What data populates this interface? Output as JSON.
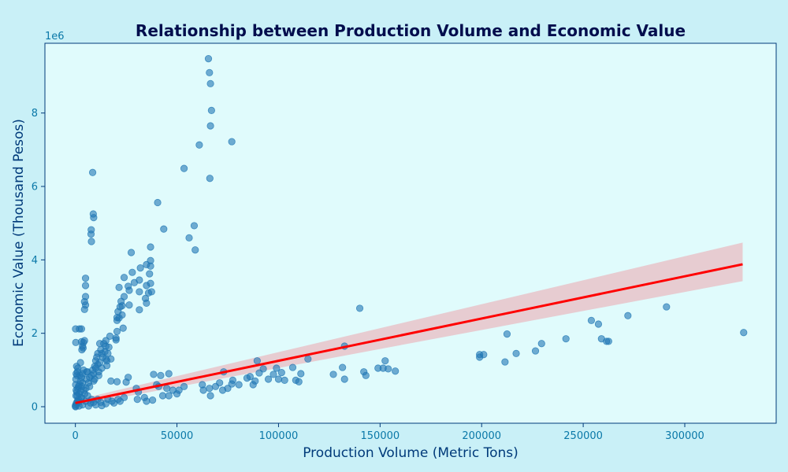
{
  "chart_data": {
    "type": "scatter",
    "title": "Relationship between Production Volume and Economic Value",
    "xlabel": "Production Volume (Metric Tons)",
    "ylabel": "Economic Value (Thousand Pesos)",
    "y_offset_text": "1e6",
    "xlim": [
      -15000,
      345000
    ],
    "ylim": [
      -0.45,
      9.9
    ],
    "x_ticks": [
      0,
      50000,
      100000,
      150000,
      200000,
      250000,
      300000
    ],
    "x_tick_labels": [
      "0",
      "50000",
      "100000",
      "150000",
      "200000",
      "250000",
      "300000"
    ],
    "y_ticks": [
      0,
      2,
      4,
      6,
      8
    ],
    "y_tick_labels": [
      "0",
      "2",
      "4",
      "6",
      "8"
    ],
    "grid": false,
    "regression": {
      "x": [
        0,
        328500
      ],
      "y": [
        0.1,
        3.88
      ],
      "ci_lower": [
        0.02,
        3.42
      ],
      "ci_upper": [
        0.18,
        4.47
      ],
      "color": "#ff0000",
      "ci_color": "#e8c7cc"
    },
    "colors": {
      "points": "#1f77b4",
      "background": "#c9f0f7",
      "plot_area": "#e0fbfc",
      "title": "#000d4d",
      "axis_label": "#003a7a",
      "ticks": "#0a78a8"
    },
    "points": [
      [
        65500,
        9.48
      ],
      [
        66000,
        9.1
      ],
      [
        66500,
        8.8
      ],
      [
        67000,
        8.07
      ],
      [
        66500,
        7.65
      ],
      [
        77000,
        7.22
      ],
      [
        61000,
        7.13
      ],
      [
        53500,
        6.49
      ],
      [
        66200,
        6.22
      ],
      [
        8500,
        6.38
      ],
      [
        40500,
        5.56
      ],
      [
        8800,
        5.25
      ],
      [
        9000,
        5.15
      ],
      [
        7800,
        4.82
      ],
      [
        7700,
        4.7
      ],
      [
        7900,
        4.5
      ],
      [
        58500,
        4.93
      ],
      [
        43500,
        4.84
      ],
      [
        56000,
        4.6
      ],
      [
        59000,
        4.27
      ],
      [
        37000,
        4.35
      ],
      [
        27500,
        4.2
      ],
      [
        37000,
        3.98
      ],
      [
        35000,
        3.87
      ],
      [
        37000,
        3.83
      ],
      [
        32000,
        3.78
      ],
      [
        28000,
        3.66
      ],
      [
        36500,
        3.62
      ],
      [
        24000,
        3.52
      ],
      [
        31500,
        3.45
      ],
      [
        29000,
        3.38
      ],
      [
        37000,
        3.36
      ],
      [
        35000,
        3.3
      ],
      [
        26000,
        3.28
      ],
      [
        21500,
        3.25
      ],
      [
        26500,
        3.17
      ],
      [
        37500,
        3.13
      ],
      [
        31500,
        3.13
      ],
      [
        36000,
        3.1
      ],
      [
        24000,
        3.0
      ],
      [
        34500,
        2.95
      ],
      [
        22500,
        2.87
      ],
      [
        35000,
        2.82
      ],
      [
        26500,
        2.77
      ],
      [
        23000,
        2.75
      ],
      [
        22000,
        2.72
      ],
      [
        31500,
        2.64
      ],
      [
        21000,
        2.59
      ],
      [
        23000,
        2.5
      ],
      [
        20500,
        2.43
      ],
      [
        21500,
        2.42
      ],
      [
        20500,
        2.35
      ],
      [
        23500,
        2.14
      ],
      [
        20500,
        2.05
      ],
      [
        20000,
        1.87
      ],
      [
        20000,
        1.82
      ],
      [
        5000,
        3.5
      ],
      [
        5000,
        3.3
      ],
      [
        5000,
        3.0
      ],
      [
        4500,
        2.86
      ],
      [
        5000,
        2.77
      ],
      [
        4500,
        2.65
      ],
      [
        2000,
        2.12
      ],
      [
        3000,
        2.12
      ],
      [
        100,
        2.12
      ],
      [
        3000,
        1.77
      ],
      [
        4000,
        1.75
      ],
      [
        3500,
        1.65
      ],
      [
        3800,
        1.6
      ],
      [
        3200,
        1.55
      ],
      [
        200,
        1.75
      ],
      [
        4500,
        1.8
      ],
      [
        15000,
        1.8
      ],
      [
        17000,
        1.92
      ],
      [
        15000,
        1.65
      ],
      [
        16500,
        1.62
      ],
      [
        12000,
        1.72
      ],
      [
        14500,
        1.5
      ],
      [
        13000,
        1.45
      ],
      [
        11000,
        1.45
      ],
      [
        13500,
        1.35
      ],
      [
        15000,
        1.3
      ],
      [
        17500,
        1.3
      ],
      [
        10000,
        1.25
      ],
      [
        12000,
        1.2
      ],
      [
        9500,
        1.1
      ],
      [
        15500,
        1.12
      ],
      [
        8500,
        1.0
      ],
      [
        6000,
        0.95
      ],
      [
        9000,
        0.9
      ],
      [
        11500,
        0.85
      ],
      [
        7000,
        0.8
      ],
      [
        5500,
        0.75
      ],
      [
        9000,
        0.7
      ],
      [
        3500,
        0.65
      ],
      [
        1500,
        0.55
      ],
      [
        2500,
        1.2
      ],
      [
        1200,
        1.05
      ],
      [
        800,
        0.85
      ],
      [
        400,
        0.45
      ],
      [
        1800,
        0.35
      ],
      [
        2800,
        0.25
      ],
      [
        5000,
        0.15
      ],
      [
        7500,
        0.1
      ],
      [
        10000,
        0.05
      ],
      [
        12500,
        0.12
      ],
      [
        15000,
        0.08
      ],
      [
        18000,
        0.15
      ],
      [
        21000,
        0.2
      ],
      [
        24000,
        0.25
      ],
      [
        26000,
        0.8
      ],
      [
        25000,
        0.67
      ],
      [
        17500,
        0.7
      ],
      [
        20500,
        0.68
      ],
      [
        30000,
        0.5
      ],
      [
        31000,
        0.4
      ],
      [
        30500,
        0.2
      ],
      [
        34000,
        0.25
      ],
      [
        35000,
        0.15
      ],
      [
        38000,
        0.18
      ],
      [
        38500,
        0.88
      ],
      [
        42000,
        0.85
      ],
      [
        46000,
        0.9
      ],
      [
        40000,
        0.6
      ],
      [
        41000,
        0.55
      ],
      [
        45000,
        0.5
      ],
      [
        48000,
        0.45
      ],
      [
        51000,
        0.45
      ],
      [
        50000,
        0.35
      ],
      [
        46000,
        0.3
      ],
      [
        53500,
        0.55
      ],
      [
        43000,
        0.3
      ],
      [
        62500,
        0.6
      ],
      [
        63000,
        0.45
      ],
      [
        66000,
        0.5
      ],
      [
        66500,
        0.3
      ],
      [
        69000,
        0.55
      ],
      [
        71000,
        0.65
      ],
      [
        73000,
        0.95
      ],
      [
        72500,
        0.45
      ],
      [
        75000,
        0.5
      ],
      [
        77000,
        0.62
      ],
      [
        77500,
        0.72
      ],
      [
        80500,
        0.6
      ],
      [
        84500,
        0.78
      ],
      [
        86000,
        0.82
      ],
      [
        87500,
        0.6
      ],
      [
        88500,
        0.7
      ],
      [
        90500,
        0.92
      ],
      [
        92500,
        1.03
      ],
      [
        89500,
        1.25
      ],
      [
        95000,
        0.75
      ],
      [
        97500,
        0.88
      ],
      [
        99000,
        1.05
      ],
      [
        100000,
        0.75
      ],
      [
        101500,
        0.93
      ],
      [
        103000,
        0.72
      ],
      [
        107000,
        1.07
      ],
      [
        108500,
        0.72
      ],
      [
        110000,
        0.68
      ],
      [
        111000,
        0.9
      ],
      [
        114500,
        1.3
      ],
      [
        127000,
        0.88
      ],
      [
        131500,
        1.07
      ],
      [
        132500,
        0.75
      ],
      [
        132500,
        1.65
      ],
      [
        140000,
        2.68
      ],
      [
        142000,
        0.95
      ],
      [
        143000,
        0.85
      ],
      [
        149000,
        1.05
      ],
      [
        151500,
        1.05
      ],
      [
        152500,
        1.25
      ],
      [
        154000,
        1.03
      ],
      [
        157500,
        0.97
      ],
      [
        199000,
        1.35
      ],
      [
        199000,
        1.42
      ],
      [
        201000,
        1.42
      ],
      [
        211500,
        1.22
      ],
      [
        212500,
        1.98
      ],
      [
        217000,
        1.45
      ],
      [
        226500,
        1.52
      ],
      [
        229500,
        1.72
      ],
      [
        241500,
        1.85
      ],
      [
        254000,
        2.35
      ],
      [
        257500,
        2.25
      ],
      [
        259000,
        1.85
      ],
      [
        261500,
        1.78
      ],
      [
        262500,
        1.78
      ],
      [
        272000,
        2.48
      ],
      [
        291000,
        2.72
      ],
      [
        329000,
        2.02
      ],
      [
        0,
        0.02
      ],
      [
        200,
        0.05
      ],
      [
        500,
        0.1
      ],
      [
        1000,
        0.15
      ],
      [
        1500,
        0.2
      ],
      [
        300,
        0.3
      ],
      [
        700,
        0.4
      ],
      [
        1200,
        0.5
      ],
      [
        2000,
        0.6
      ],
      [
        2500,
        0.7
      ],
      [
        3000,
        0.8
      ],
      [
        3500,
        0.9
      ],
      [
        4000,
        1.0
      ],
      [
        600,
        1.1
      ],
      [
        1000,
        0.95
      ],
      [
        2200,
        0.85
      ],
      [
        4200,
        0.45
      ],
      [
        6000,
        0.3
      ],
      [
        8000,
        0.2
      ],
      [
        100,
        0.0
      ],
      [
        1800,
        0.02
      ],
      [
        3500,
        0.05
      ],
      [
        6500,
        0.02
      ],
      [
        9000,
        0.12
      ],
      [
        11000,
        0.2
      ],
      [
        13000,
        0.03
      ],
      [
        16000,
        0.2
      ],
      [
        19000,
        0.1
      ],
      [
        22000,
        0.15
      ],
      [
        7000,
        0.55
      ],
      [
        9500,
        0.75
      ],
      [
        11500,
        0.95
      ],
      [
        13000,
        1.05
      ],
      [
        6500,
        0.65
      ],
      [
        8000,
        0.85
      ],
      [
        5200,
        0.5
      ],
      [
        4600,
        0.35
      ],
      [
        3000,
        0.25
      ],
      [
        150,
        0.6
      ],
      [
        250,
        0.75
      ],
      [
        400,
        0.9
      ],
      [
        900,
        0.3
      ],
      [
        1600,
        0.12
      ],
      [
        2600,
        0.42
      ],
      [
        3300,
        0.55
      ],
      [
        5500,
        0.95
      ],
      [
        10500,
        1.35
      ],
      [
        12500,
        1.55
      ],
      [
        14000,
        1.72
      ],
      [
        16000,
        1.45
      ],
      [
        15500,
        1.25
      ],
      [
        11000,
        1.15
      ],
      [
        10000,
        1.05
      ]
    ]
  }
}
